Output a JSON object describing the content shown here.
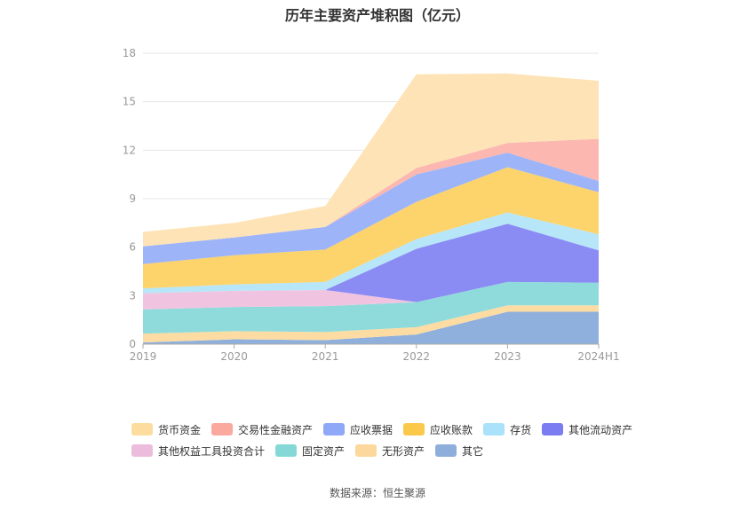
{
  "title": "历年主要资产堆积图（亿元）",
  "source": "数据来源：恒生聚源",
  "chart_data": {
    "type": "area",
    "stacked": true,
    "categories": [
      "2019",
      "2020",
      "2021",
      "2022",
      "2023",
      "2024H1"
    ],
    "ylim": [
      0,
      18
    ],
    "yticks": [
      0,
      3,
      6,
      9,
      12,
      15,
      18
    ],
    "grid": true,
    "legend_position": "bottom",
    "series": [
      {
        "name": "其它",
        "color": "#8fb0dc",
        "values": [
          0.1,
          0.3,
          0.25,
          0.6,
          2.0,
          2.0
        ]
      },
      {
        "name": "无形资产",
        "color": "#fddca3",
        "values": [
          0.55,
          0.5,
          0.5,
          0.45,
          0.4,
          0.4
        ]
      },
      {
        "name": "固定资产",
        "color": "#8fdbdb",
        "values": [
          1.5,
          1.5,
          1.6,
          1.55,
          1.45,
          1.4
        ]
      },
      {
        "name": "其他权益工具投资合计",
        "color": "#f0c4e0",
        "values": [
          1.0,
          1.0,
          1.0,
          0.0,
          0.0,
          0.0
        ]
      },
      {
        "name": "其他流动资产",
        "color": "#8a8cf4",
        "values": [
          0.0,
          0.0,
          0.0,
          3.3,
          3.6,
          2.0
        ]
      },
      {
        "name": "存货",
        "color": "#b7e6f8",
        "values": [
          0.3,
          0.4,
          0.5,
          0.6,
          0.7,
          1.0
        ]
      },
      {
        "name": "应收账款",
        "color": "#fdd36b",
        "values": [
          1.5,
          1.8,
          2.0,
          2.3,
          2.8,
          2.6
        ]
      },
      {
        "name": "应收票据",
        "color": "#9db5f8",
        "values": [
          1.1,
          1.1,
          1.4,
          1.7,
          0.9,
          0.7
        ]
      },
      {
        "name": "交易性金融资产",
        "color": "#fcb7b0",
        "values": [
          0.0,
          0.0,
          0.0,
          0.4,
          0.6,
          2.6
        ]
      },
      {
        "name": "货币资金",
        "color": "#fde3b6",
        "values": [
          0.9,
          0.9,
          1.3,
          5.8,
          4.3,
          3.6
        ]
      }
    ],
    "legend_order": [
      {
        "name": "货币资金",
        "color": "#fddca0"
      },
      {
        "name": "交易性金融资产",
        "color": "#fba99f"
      },
      {
        "name": "应收票据",
        "color": "#8fa8f8"
      },
      {
        "name": "应收账款",
        "color": "#fbc94a"
      },
      {
        "name": "存货",
        "color": "#a9e2fa"
      },
      {
        "name": "其他流动资产",
        "color": "#7b7cf1"
      },
      {
        "name": "其他权益工具投资合计",
        "color": "#ecbcdc"
      },
      {
        "name": "固定资产",
        "color": "#84d9d6"
      },
      {
        "name": "无形资产",
        "color": "#fdd89c"
      },
      {
        "name": "其它",
        "color": "#8eaedb"
      }
    ]
  }
}
